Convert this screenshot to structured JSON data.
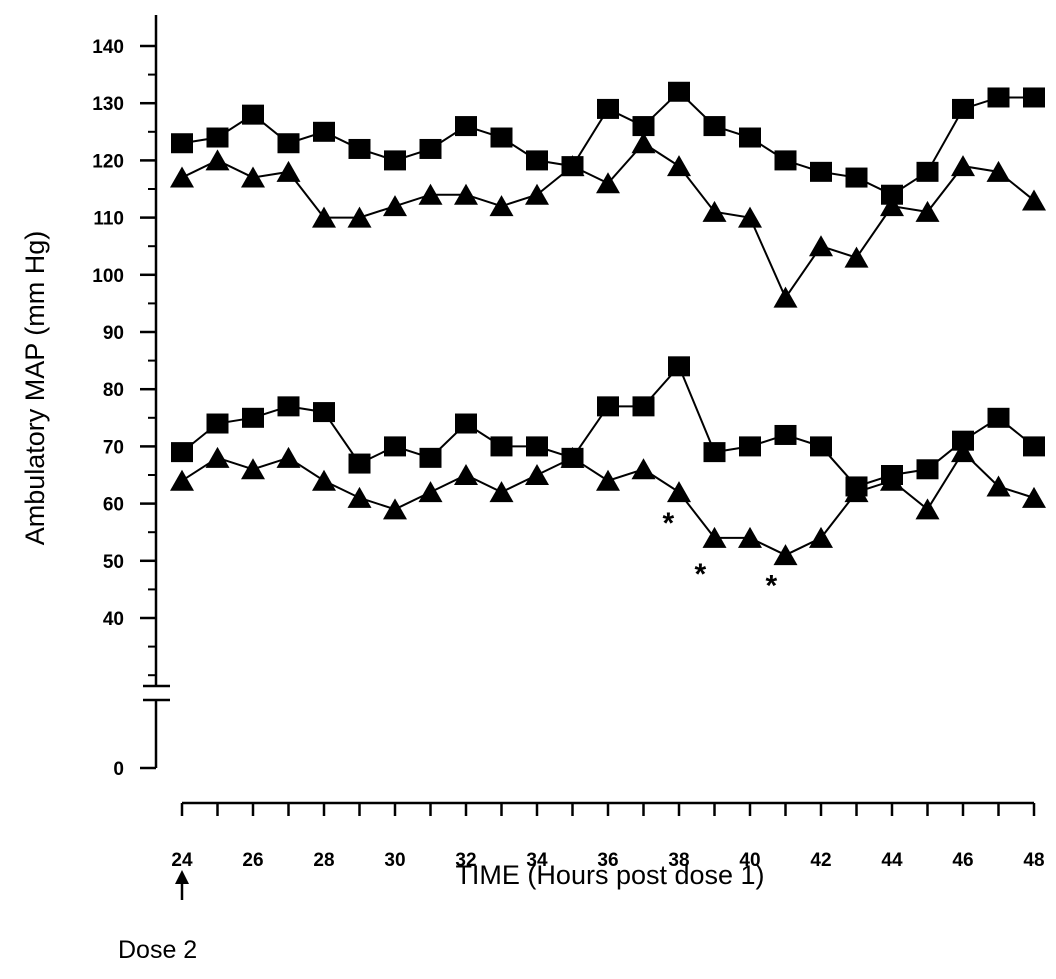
{
  "chart_data": {
    "type": "line",
    "title": "",
    "ylabel": "Ambulatory MAP (mm Hg)",
    "xlabel": "TIME (Hours post dose 1)",
    "xlim": [
      24,
      48
    ],
    "ylim_upper": [
      40,
      140
    ],
    "ylim_lower": [
      0,
      0
    ],
    "y_ticks": [
      "0",
      "40",
      "50",
      "60",
      "70",
      "80",
      "90",
      "100",
      "110",
      "120",
      "130",
      "140"
    ],
    "x_ticks": [
      "24",
      "26",
      "28",
      "30",
      "32",
      "34",
      "36",
      "38",
      "40",
      "42",
      "44",
      "46",
      "48"
    ],
    "axis_break": true,
    "grid": false,
    "legend": "none",
    "x": [
      24,
      25,
      26,
      27,
      28,
      29,
      30,
      31,
      32,
      33,
      34,
      35,
      36,
      37,
      38,
      39,
      40,
      41,
      42,
      43,
      44,
      45,
      46,
      47,
      48
    ],
    "series": [
      {
        "marker": "square",
        "values": [
          123,
          124,
          128,
          123,
          125,
          122,
          120,
          122,
          126,
          124,
          120,
          119,
          129,
          126,
          132,
          126,
          124,
          120,
          118,
          117,
          114,
          118,
          129,
          131,
          131
        ]
      },
      {
        "marker": "triangle",
        "values": [
          117,
          120,
          117,
          118,
          110,
          110,
          112,
          114,
          114,
          112,
          114,
          119,
          116,
          123,
          119,
          111,
          110,
          96,
          105,
          103,
          112,
          111,
          119,
          118,
          113
        ]
      },
      {
        "marker": "square",
        "values": [
          69,
          74,
          75,
          77,
          76,
          67,
          70,
          68,
          74,
          70,
          70,
          68,
          77,
          77,
          84,
          69,
          70,
          72,
          70,
          63,
          65,
          66,
          71,
          75,
          70
        ]
      },
      {
        "marker": "triangle",
        "values": [
          64,
          68,
          66,
          68,
          64,
          61,
          59,
          62,
          65,
          62,
          65,
          68,
          64,
          66,
          62,
          54,
          54,
          51,
          54,
          62,
          64,
          59,
          69,
          63,
          61
        ]
      }
    ],
    "annotations": [
      {
        "text": "*",
        "x": 37.7,
        "y": 57
      },
      {
        "text": "*",
        "x": 38.6,
        "y": 48
      },
      {
        "text": "*",
        "x": 40.6,
        "y": 46
      },
      {
        "text": "Dose 2",
        "x": 24,
        "arrow": true
      }
    ]
  }
}
